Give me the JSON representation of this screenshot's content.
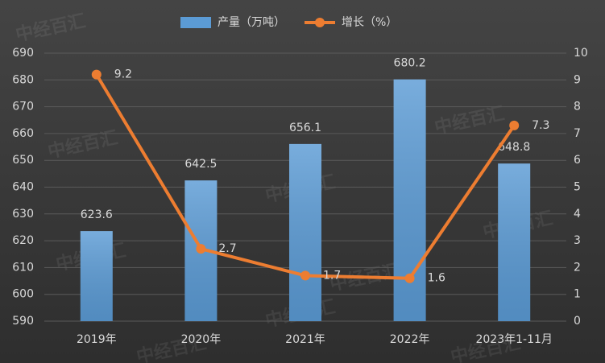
{
  "chart_data": {
    "type": "bar_line",
    "watermark": "中经百汇",
    "categories": [
      "2019年",
      "2020年",
      "2021年",
      "2022年",
      "2023年1-11月"
    ],
    "series": [
      {
        "name": "产量（万吨）",
        "type": "bar",
        "color": "#5b9bd5",
        "values": [
          623.6,
          642.5,
          656.1,
          680.2,
          648.8
        ]
      },
      {
        "name": "增长（%）",
        "type": "line",
        "axis": "y2",
        "color": "#ed7d31",
        "values": [
          9.2,
          2.7,
          1.7,
          1.6,
          7.3
        ]
      }
    ],
    "ylim": [
      590,
      690
    ],
    "yticks": [
      590,
      600,
      610,
      620,
      630,
      640,
      650,
      660,
      670,
      680,
      690
    ],
    "y2lim": [
      0,
      10
    ],
    "y2ticks": [
      0,
      1,
      2,
      3,
      4,
      5,
      6,
      7,
      8,
      9,
      10
    ],
    "grid": true,
    "legend": "top"
  }
}
